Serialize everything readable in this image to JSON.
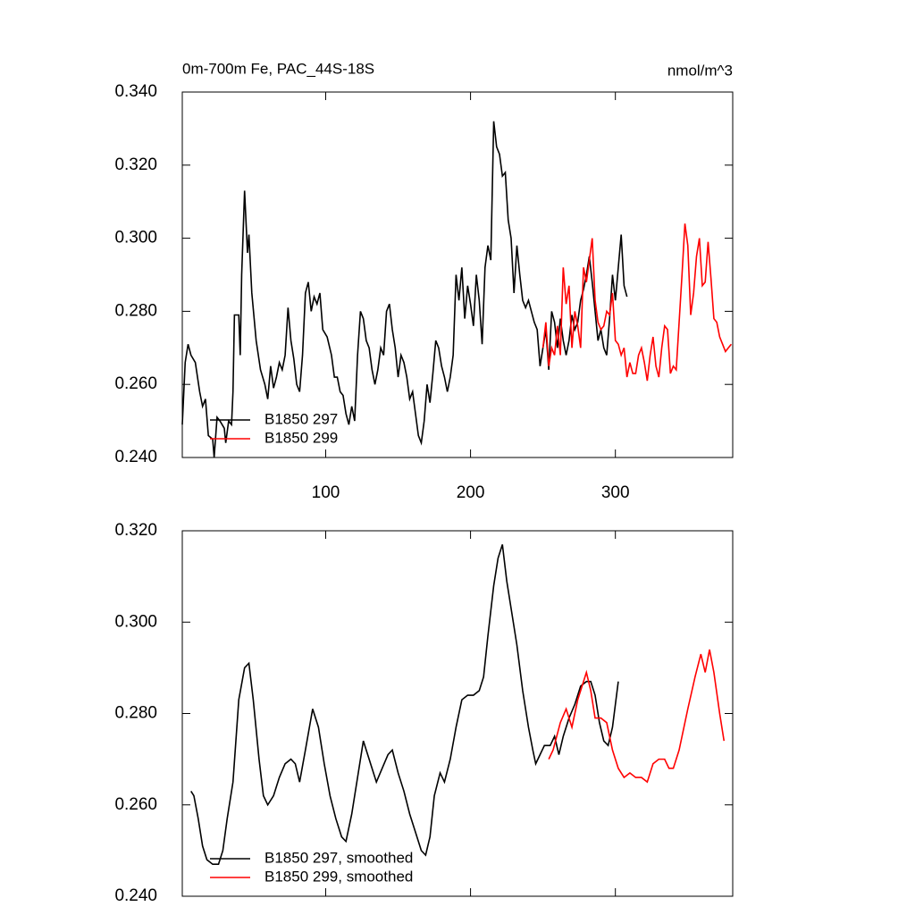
{
  "chart_data": [
    {
      "type": "line",
      "title": "0m-700m Fe, PAC_44S-18S",
      "units": "nmol/m^3",
      "xlim": [
        1,
        381
      ],
      "xticks": [
        100,
        200,
        300
      ],
      "ylim": [
        0.24,
        0.34
      ],
      "yticks": [
        {
          "value": 0.24,
          "label": "0.240"
        },
        {
          "value": 0.26,
          "label": "0.260"
        },
        {
          "value": 0.28,
          "label": "0.280"
        },
        {
          "value": 0.3,
          "label": "0.300"
        },
        {
          "value": 0.32,
          "label": "0.320"
        },
        {
          "value": 0.34,
          "label": "0.340"
        }
      ],
      "legend": "lower left",
      "series": [
        {
          "name": "B1850 297",
          "color": "#000000",
          "x": [
            1,
            3,
            5,
            7,
            10,
            13,
            15,
            17,
            19,
            22,
            23,
            25,
            27,
            30,
            31,
            33,
            35,
            36,
            37,
            40,
            41,
            42,
            44,
            46,
            47,
            49,
            52,
            55,
            58,
            60,
            62,
            64,
            66,
            68,
            70,
            72,
            74,
            76,
            78,
            80,
            82,
            84,
            86,
            88,
            90,
            92,
            94,
            96,
            98,
            101,
            104,
            106,
            108,
            110,
            112,
            114,
            116,
            118,
            120,
            122,
            124,
            126,
            128,
            130,
            132,
            134,
            136,
            138,
            140,
            142,
            144,
            146,
            148,
            150,
            152,
            154,
            156,
            158,
            160,
            162,
            164,
            166,
            168,
            170,
            172,
            174,
            176,
            178,
            180,
            182,
            184,
            186,
            188,
            190,
            192,
            194,
            196,
            198,
            200,
            202,
            204,
            206,
            208,
            210,
            212,
            214,
            216,
            218,
            220,
            222,
            224,
            226,
            228,
            230,
            232,
            234,
            236,
            238,
            240,
            242,
            244,
            246,
            248,
            250,
            252,
            254,
            256,
            258,
            260,
            262,
            264,
            266,
            268,
            270,
            272,
            274,
            276,
            278,
            280,
            282,
            284,
            286,
            288,
            290,
            292,
            294,
            296,
            298,
            300,
            302,
            304,
            306,
            308
          ],
          "values": [
            0.249,
            0.266,
            0.271,
            0.268,
            0.266,
            0.258,
            0.254,
            0.256,
            0.246,
            0.245,
            0.24,
            0.251,
            0.25,
            0.248,
            0.244,
            0.25,
            0.249,
            0.258,
            0.279,
            0.279,
            0.268,
            0.29,
            0.313,
            0.296,
            0.301,
            0.285,
            0.272,
            0.264,
            0.26,
            0.256,
            0.265,
            0.259,
            0.262,
            0.266,
            0.264,
            0.268,
            0.281,
            0.272,
            0.267,
            0.26,
            0.258,
            0.268,
            0.285,
            0.288,
            0.28,
            0.284,
            0.282,
            0.285,
            0.275,
            0.273,
            0.268,
            0.262,
            0.262,
            0.258,
            0.257,
            0.252,
            0.249,
            0.254,
            0.25,
            0.268,
            0.28,
            0.278,
            0.272,
            0.27,
            0.264,
            0.26,
            0.264,
            0.27,
            0.268,
            0.28,
            0.282,
            0.275,
            0.27,
            0.262,
            0.268,
            0.266,
            0.262,
            0.256,
            0.258,
            0.252,
            0.246,
            0.244,
            0.25,
            0.26,
            0.255,
            0.263,
            0.272,
            0.27,
            0.265,
            0.262,
            0.258,
            0.262,
            0.268,
            0.29,
            0.283,
            0.292,
            0.278,
            0.287,
            0.282,
            0.276,
            0.29,
            0.283,
            0.271,
            0.292,
            0.298,
            0.294,
            0.332,
            0.325,
            0.323,
            0.317,
            0.318,
            0.305,
            0.3,
            0.285,
            0.298,
            0.29,
            0.283,
            0.281,
            0.283,
            0.28,
            0.277,
            0.275,
            0.265,
            0.27,
            0.275,
            0.264,
            0.28,
            0.277,
            0.27,
            0.278,
            0.272,
            0.268,
            0.272,
            0.279,
            0.275,
            0.277,
            0.283,
            0.286,
            0.29,
            0.295,
            0.288,
            0.28,
            0.272,
            0.275,
            0.27,
            0.268,
            0.278,
            0.29,
            0.283,
            0.292,
            0.301,
            0.287,
            0.284
          ]
        },
        {
          "name": "B1850 299",
          "color": "#ff0000",
          "x": [
            250,
            252,
            254,
            256,
            258,
            260,
            262,
            264,
            266,
            268,
            270,
            272,
            274,
            276,
            278,
            280,
            282,
            284,
            286,
            288,
            290,
            292,
            294,
            296,
            298,
            300,
            302,
            304,
            306,
            308,
            310,
            312,
            314,
            316,
            318,
            320,
            322,
            324,
            326,
            328,
            330,
            332,
            334,
            336,
            338,
            340,
            342,
            344,
            346,
            348,
            350,
            352,
            354,
            356,
            358,
            360,
            362,
            364,
            366,
            368,
            370,
            372,
            374,
            376,
            378,
            380
          ],
          "values": [
            0.27,
            0.277,
            0.265,
            0.27,
            0.268,
            0.276,
            0.268,
            0.292,
            0.282,
            0.287,
            0.27,
            0.28,
            0.276,
            0.27,
            0.292,
            0.288,
            0.294,
            0.3,
            0.283,
            0.277,
            0.275,
            0.276,
            0.28,
            0.279,
            0.285,
            0.272,
            0.271,
            0.268,
            0.27,
            0.262,
            0.266,
            0.263,
            0.263,
            0.268,
            0.27,
            0.266,
            0.261,
            0.268,
            0.273,
            0.265,
            0.262,
            0.27,
            0.276,
            0.275,
            0.263,
            0.265,
            0.264,
            0.277,
            0.29,
            0.304,
            0.298,
            0.279,
            0.285,
            0.295,
            0.3,
            0.287,
            0.288,
            0.299,
            0.289,
            0.278,
            0.277,
            0.273,
            0.271,
            0.269,
            0.27,
            0.271
          ]
        }
      ]
    },
    {
      "type": "line",
      "xlim": [
        1,
        381
      ],
      "ylim": [
        0.24,
        0.32
      ],
      "yticks": [
        {
          "value": 0.24,
          "label": "0.240"
        },
        {
          "value": 0.26,
          "label": "0.260"
        },
        {
          "value": 0.28,
          "label": "0.280"
        },
        {
          "value": 0.3,
          "label": "0.300"
        },
        {
          "value": 0.32,
          "label": "0.320"
        }
      ],
      "legend": "lower left",
      "series": [
        {
          "name": "B1850 297, smoothed",
          "color": "#000000",
          "x": [
            7,
            9,
            12,
            15,
            18,
            22,
            26,
            29,
            32,
            36,
            40,
            44,
            47,
            50,
            54,
            57,
            60,
            64,
            68,
            72,
            76,
            79,
            82,
            86,
            91,
            95,
            99,
            103,
            107,
            111,
            114,
            118,
            122,
            126,
            129,
            132,
            135,
            139,
            143,
            146,
            150,
            154,
            158,
            162,
            166,
            169,
            172,
            175,
            179,
            182,
            186,
            190,
            194,
            198,
            202,
            206,
            209,
            212,
            216,
            219,
            222,
            225,
            228,
            232,
            236,
            240,
            243,
            245,
            248,
            251,
            255,
            258,
            261,
            264,
            268,
            272,
            276,
            280,
            283,
            286,
            289,
            292,
            295,
            298,
            302
          ],
          "values": [
            0.263,
            0.262,
            0.257,
            0.251,
            0.248,
            0.247,
            0.247,
            0.25,
            0.257,
            0.265,
            0.283,
            0.29,
            0.291,
            0.283,
            0.27,
            0.262,
            0.26,
            0.262,
            0.266,
            0.269,
            0.27,
            0.269,
            0.265,
            0.272,
            0.281,
            0.277,
            0.269,
            0.262,
            0.257,
            0.253,
            0.252,
            0.258,
            0.266,
            0.274,
            0.271,
            0.268,
            0.265,
            0.268,
            0.271,
            0.272,
            0.267,
            0.263,
            0.258,
            0.254,
            0.25,
            0.249,
            0.253,
            0.262,
            0.267,
            0.265,
            0.27,
            0.277,
            0.283,
            0.284,
            0.284,
            0.285,
            0.288,
            0.297,
            0.308,
            0.314,
            0.317,
            0.309,
            0.303,
            0.295,
            0.285,
            0.277,
            0.272,
            0.269,
            0.271,
            0.273,
            0.273,
            0.275,
            0.271,
            0.275,
            0.279,
            0.282,
            0.286,
            0.287,
            0.287,
            0.284,
            0.278,
            0.274,
            0.273,
            0.277,
            0.287
          ]
        },
        {
          "name": "B1850 299, smoothed",
          "color": "#ff0000",
          "x": [
            254,
            257,
            262,
            266,
            270,
            274,
            278,
            280,
            283,
            286,
            290,
            294,
            298,
            302,
            306,
            310,
            314,
            318,
            322,
            326,
            330,
            334,
            337,
            340,
            344,
            350,
            355,
            359,
            362,
            365,
            368,
            372,
            375
          ],
          "values": [
            0.27,
            0.272,
            0.278,
            0.281,
            0.277,
            0.283,
            0.287,
            0.289,
            0.285,
            0.279,
            0.279,
            0.278,
            0.272,
            0.268,
            0.266,
            0.267,
            0.266,
            0.266,
            0.265,
            0.269,
            0.27,
            0.27,
            0.268,
            0.268,
            0.272,
            0.281,
            0.288,
            0.293,
            0.289,
            0.294,
            0.289,
            0.28,
            0.274
          ]
        }
      ]
    }
  ]
}
